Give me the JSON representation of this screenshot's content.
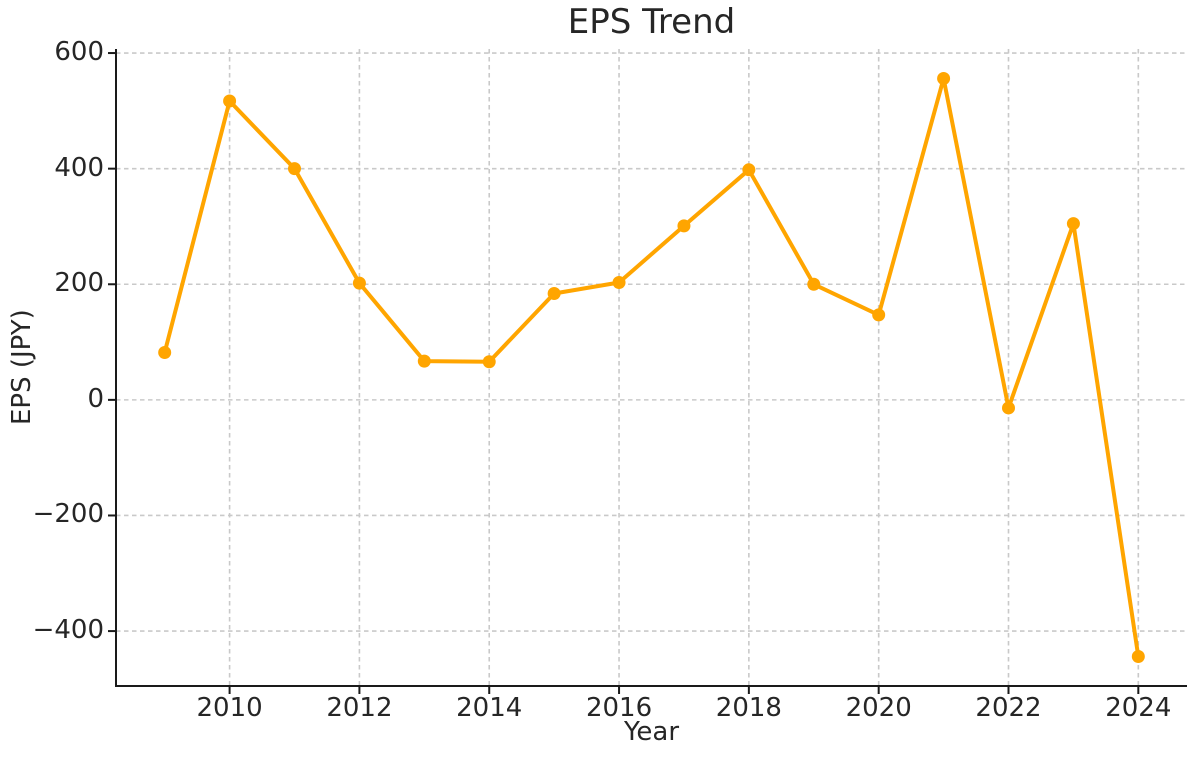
{
  "chart_data": {
    "type": "line",
    "title": "EPS Trend",
    "xlabel": "Year",
    "ylabel": "EPS (JPY)",
    "x": [
      2009,
      2010,
      2011,
      2012,
      2013,
      2014,
      2015,
      2016,
      2017,
      2018,
      2019,
      2020,
      2021,
      2022,
      2023,
      2024
    ],
    "series": [
      {
        "name": "EPS",
        "values": [
          82,
          517,
          400,
          202,
          67,
          66,
          184,
          203,
          301,
          398,
          200,
          147,
          556,
          -14,
          305,
          -444
        ]
      }
    ],
    "xlim": [
      2008.25,
      2024.75
    ],
    "ylim": [
      -495,
      607
    ],
    "xticks": [
      2010,
      2012,
      2014,
      2016,
      2018,
      2020,
      2022,
      2024
    ],
    "xtick_labels": [
      "2010",
      "2012",
      "2014",
      "2016",
      "2018",
      "2020",
      "2022",
      "2024"
    ],
    "yticks": [
      600,
      400,
      200,
      0,
      -200,
      -400
    ],
    "ytick_labels": [
      "600",
      "400",
      "200",
      "0",
      "−200",
      "−400"
    ],
    "grid": true,
    "grid_style": "dashed",
    "legend": false,
    "marker": "circle",
    "colors": {
      "line": "#FFA500",
      "marker": "#FFA500",
      "grid": "#c9c9c9",
      "axis": "#1a1a1a",
      "text": "#262626",
      "background": "#ffffff"
    }
  }
}
